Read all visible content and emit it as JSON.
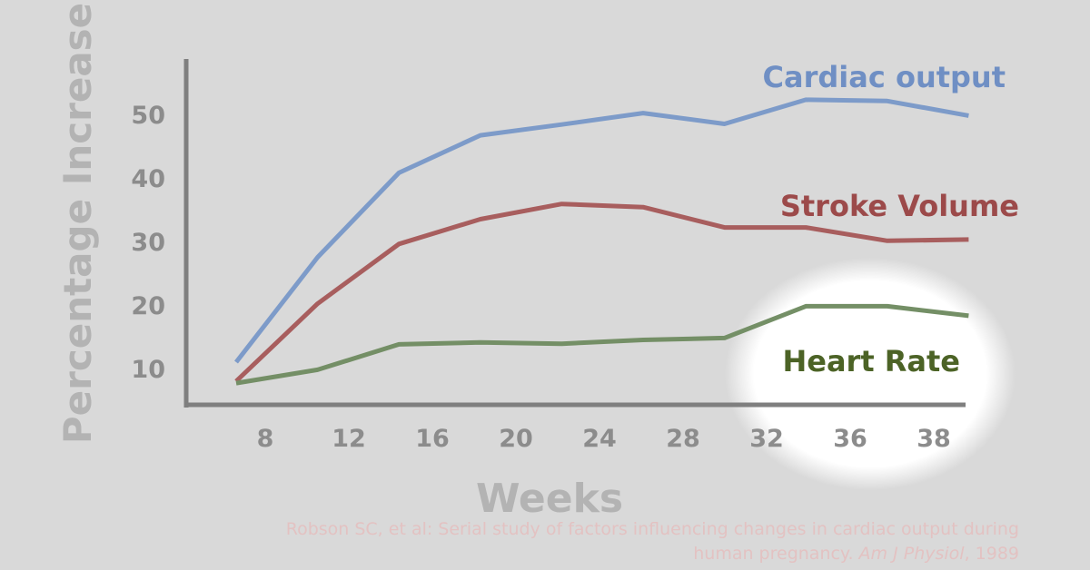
{
  "chart_data": {
    "type": "line",
    "xlabel": "Weeks",
    "ylabel": "Percentage Increase",
    "x_ticks": [
      8,
      12,
      16,
      20,
      24,
      28,
      32,
      36,
      38
    ],
    "y_ticks": [
      10,
      20,
      30,
      40,
      50
    ],
    "ylim": [
      5,
      58
    ],
    "grid": false,
    "x": [
      5,
      9,
      13,
      17,
      21,
      25,
      29,
      33,
      37,
      41
    ],
    "series": [
      {
        "name": "Cardiac output",
        "color": "#7d9bc9",
        "label_color": "#6f8fc4",
        "values": [
          11,
          27.5,
          40.8,
          46.7,
          48.4,
          50.2,
          48.5,
          52.3,
          52.1,
          49.8
        ]
      },
      {
        "name": "Stroke Volume",
        "color": "#a85e5e",
        "label_color": "#9c4a4a",
        "values": [
          8,
          20.2,
          29.6,
          33.5,
          35.9,
          35.4,
          32.2,
          32.2,
          30.1,
          30.3
        ]
      },
      {
        "name": "Heart Rate",
        "color": "#748f66",
        "label_color": "#4c6326",
        "values": [
          7.7,
          9.8,
          13.8,
          14.1,
          13.9,
          14.5,
          14.8,
          19.8,
          19.8,
          18.3
        ]
      }
    ],
    "annotation": "Heart Rate highlighted"
  },
  "citation": {
    "line1": "Robson SC, et al: Serial study of factors influencing changes in cardiac output during",
    "line2_prefix": "human pregnancy. ",
    "journal": "Am J Physiol",
    "line2_suffix": ", 1989"
  }
}
